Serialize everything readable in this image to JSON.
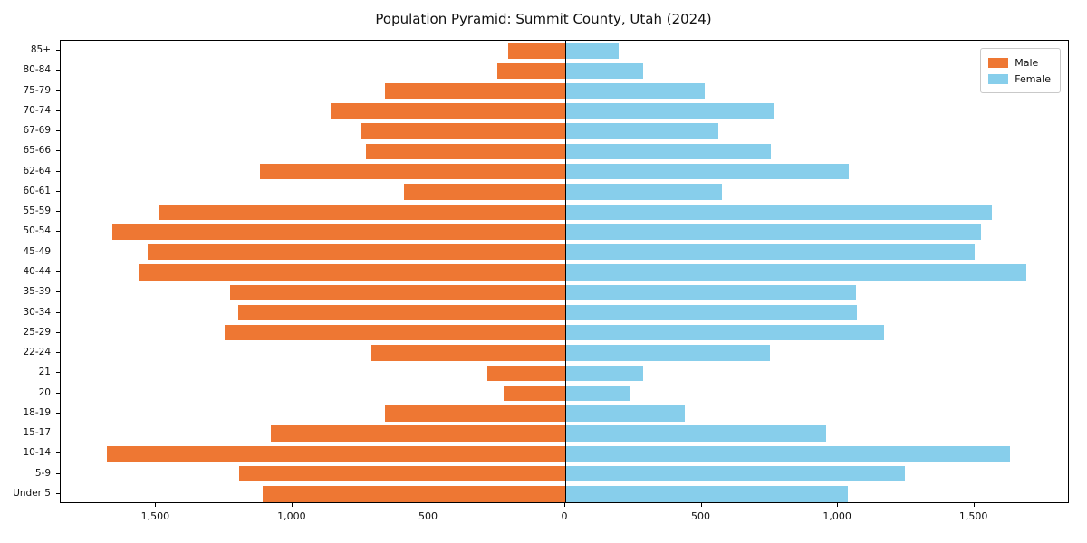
{
  "chart_data": {
    "type": "bar",
    "orientation": "horizontal-pyramid",
    "title": "Population Pyramid: Summit County, Utah (2024)",
    "categories_top_to_bottom": [
      "85+",
      "80-84",
      "75-79",
      "70-74",
      "67-69",
      "65-66",
      "62-64",
      "60-61",
      "55-59",
      "50-54",
      "45-49",
      "40-44",
      "35-39",
      "30-34",
      "25-29",
      "22-24",
      "21",
      "20",
      "18-19",
      "15-17",
      "10-14",
      "5-9",
      "Under 5"
    ],
    "series": [
      {
        "name": "Male",
        "side": "left",
        "color": "#ee7733",
        "values": [
          210,
          250,
          660,
          860,
          750,
          730,
          1120,
          590,
          1490,
          1660,
          1530,
          1560,
          1230,
          1200,
          1250,
          710,
          285,
          225,
          660,
          1080,
          1680,
          1195,
          1110
        ]
      },
      {
        "name": "Female",
        "side": "right",
        "color": "#87ceeb",
        "values": [
          195,
          285,
          510,
          765,
          560,
          755,
          1040,
          575,
          1565,
          1525,
          1500,
          1690,
          1065,
          1070,
          1170,
          750,
          285,
          240,
          440,
          955,
          1630,
          1245,
          1035
        ]
      }
    ],
    "x_ticks": [
      -1500,
      -1000,
      -500,
      0,
      500,
      1000,
      1500
    ],
    "x_tick_labels": [
      "1,500",
      "1,000",
      "500",
      "0",
      "500",
      "1,000",
      "1,500"
    ],
    "xlim": [
      -1850,
      1850
    ],
    "grid": false,
    "legend": {
      "position": "top-right",
      "entries": [
        "Male",
        "Female"
      ]
    }
  }
}
